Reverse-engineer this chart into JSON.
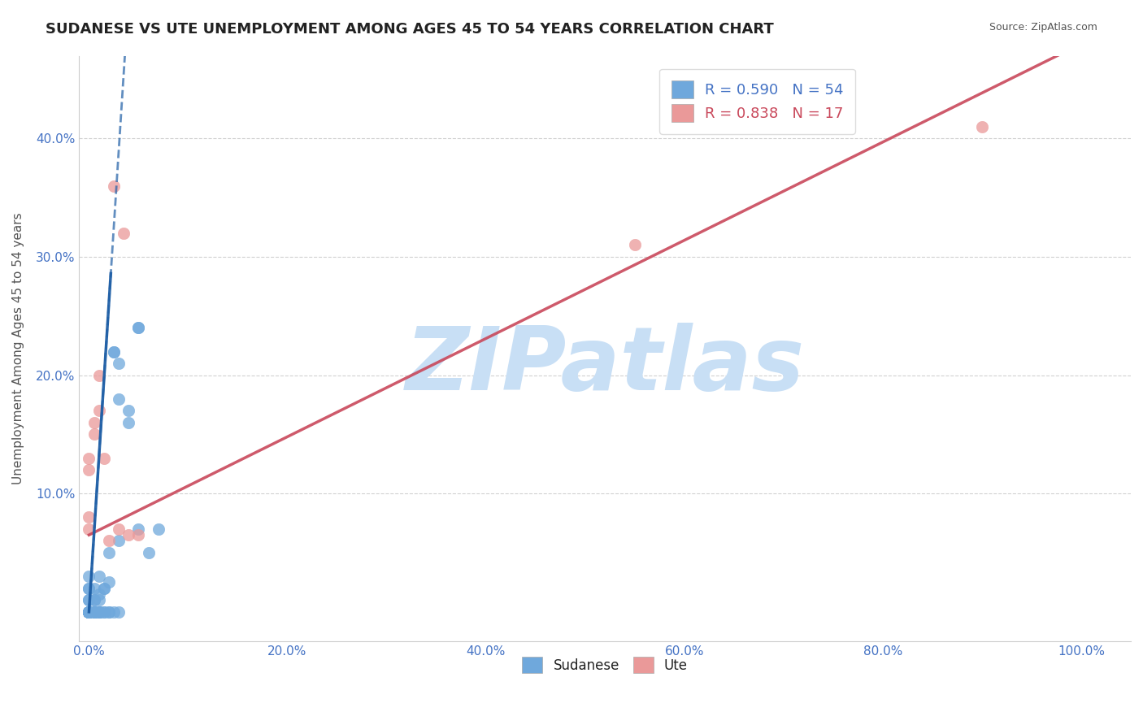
{
  "title": "SUDANESE VS UTE UNEMPLOYMENT AMONG AGES 45 TO 54 YEARS CORRELATION CHART",
  "source": "Source: ZipAtlas.com",
  "ylabel": "Unemployment Among Ages 45 to 54 years",
  "x_tick_labels": [
    "0.0%",
    "20.0%",
    "40.0%",
    "60.0%",
    "80.0%",
    "100.0%"
  ],
  "x_tick_vals": [
    0,
    0.2,
    0.4,
    0.6,
    0.8,
    1.0
  ],
  "y_tick_labels": [
    "10.0%",
    "20.0%",
    "30.0%",
    "40.0%"
  ],
  "y_tick_vals": [
    0.1,
    0.2,
    0.3,
    0.4
  ],
  "xlim": [
    -0.01,
    1.05
  ],
  "ylim": [
    -0.025,
    0.47
  ],
  "legend_blue_label": "R = 0.590   N = 54",
  "legend_pink_label": "R = 0.838   N = 17",
  "blue_color": "#6fa8dc",
  "pink_color": "#ea9999",
  "blue_line_color": "#1f5fa6",
  "pink_line_color": "#c9485b",
  "blue_scatter": [
    [
      0.0,
      0.0
    ],
    [
      0.0,
      0.0
    ],
    [
      0.0,
      0.0
    ],
    [
      0.0,
      0.01
    ],
    [
      0.0,
      0.0
    ],
    [
      0.0,
      0.02
    ],
    [
      0.0,
      0.0
    ],
    [
      0.0,
      0.03
    ],
    [
      0.0,
      0.0
    ],
    [
      0.0,
      0.0
    ],
    [
      0.005,
      0.01
    ],
    [
      0.005,
      0.02
    ],
    [
      0.005,
      0.0
    ],
    [
      0.005,
      0.0
    ],
    [
      0.005,
      0.0
    ],
    [
      0.01,
      0.015
    ],
    [
      0.01,
      0.03
    ],
    [
      0.01,
      0.0
    ],
    [
      0.01,
      0.0
    ],
    [
      0.015,
      0.02
    ],
    [
      0.015,
      0.02
    ],
    [
      0.015,
      0.0
    ],
    [
      0.02,
      0.025
    ],
    [
      0.02,
      0.0
    ],
    [
      0.025,
      0.22
    ],
    [
      0.025,
      0.22
    ],
    [
      0.03,
      0.18
    ],
    [
      0.03,
      0.21
    ],
    [
      0.04,
      0.16
    ],
    [
      0.04,
      0.17
    ],
    [
      0.05,
      0.24
    ],
    [
      0.05,
      0.24
    ],
    [
      0.06,
      0.05
    ],
    [
      0.07,
      0.07
    ],
    [
      0.0,
      0.0
    ],
    [
      0.0,
      0.0
    ],
    [
      0.0,
      0.0
    ],
    [
      0.005,
      0.0
    ],
    [
      0.005,
      0.01
    ],
    [
      0.01,
      0.0
    ],
    [
      0.01,
      0.01
    ],
    [
      0.02,
      0.05
    ],
    [
      0.03,
      0.06
    ],
    [
      0.05,
      0.07
    ],
    [
      0.0,
      0.0
    ],
    [
      0.0,
      0.0
    ],
    [
      0.0,
      0.01
    ],
    [
      0.0,
      0.02
    ],
    [
      0.005,
      0.0
    ],
    [
      0.01,
      0.0
    ],
    [
      0.015,
      0.0
    ],
    [
      0.02,
      0.0
    ],
    [
      0.025,
      0.0
    ],
    [
      0.03,
      0.0
    ]
  ],
  "pink_scatter": [
    [
      0.0,
      0.07
    ],
    [
      0.0,
      0.08
    ],
    [
      0.0,
      0.12
    ],
    [
      0.0,
      0.13
    ],
    [
      0.005,
      0.15
    ],
    [
      0.005,
      0.16
    ],
    [
      0.01,
      0.17
    ],
    [
      0.01,
      0.2
    ],
    [
      0.015,
      0.13
    ],
    [
      0.02,
      0.06
    ],
    [
      0.03,
      0.07
    ],
    [
      0.04,
      0.065
    ],
    [
      0.05,
      0.065
    ],
    [
      0.035,
      0.32
    ],
    [
      0.9,
      0.41
    ],
    [
      0.55,
      0.31
    ],
    [
      0.025,
      0.36
    ]
  ],
  "watermark": "ZIPatlas",
  "watermark_color": "#c8dff5",
  "grid_color": "#cccccc",
  "background_color": "#ffffff",
  "title_fontsize": 13,
  "axis_label_color": "#555555",
  "tick_label_color": "#4472c4",
  "source_fontsize": 9,
  "legend_color_blue": "#6fa8dc",
  "legend_color_pink": "#ea9999",
  "bottom_legend_labels": [
    "Sudanese",
    "Ute"
  ]
}
